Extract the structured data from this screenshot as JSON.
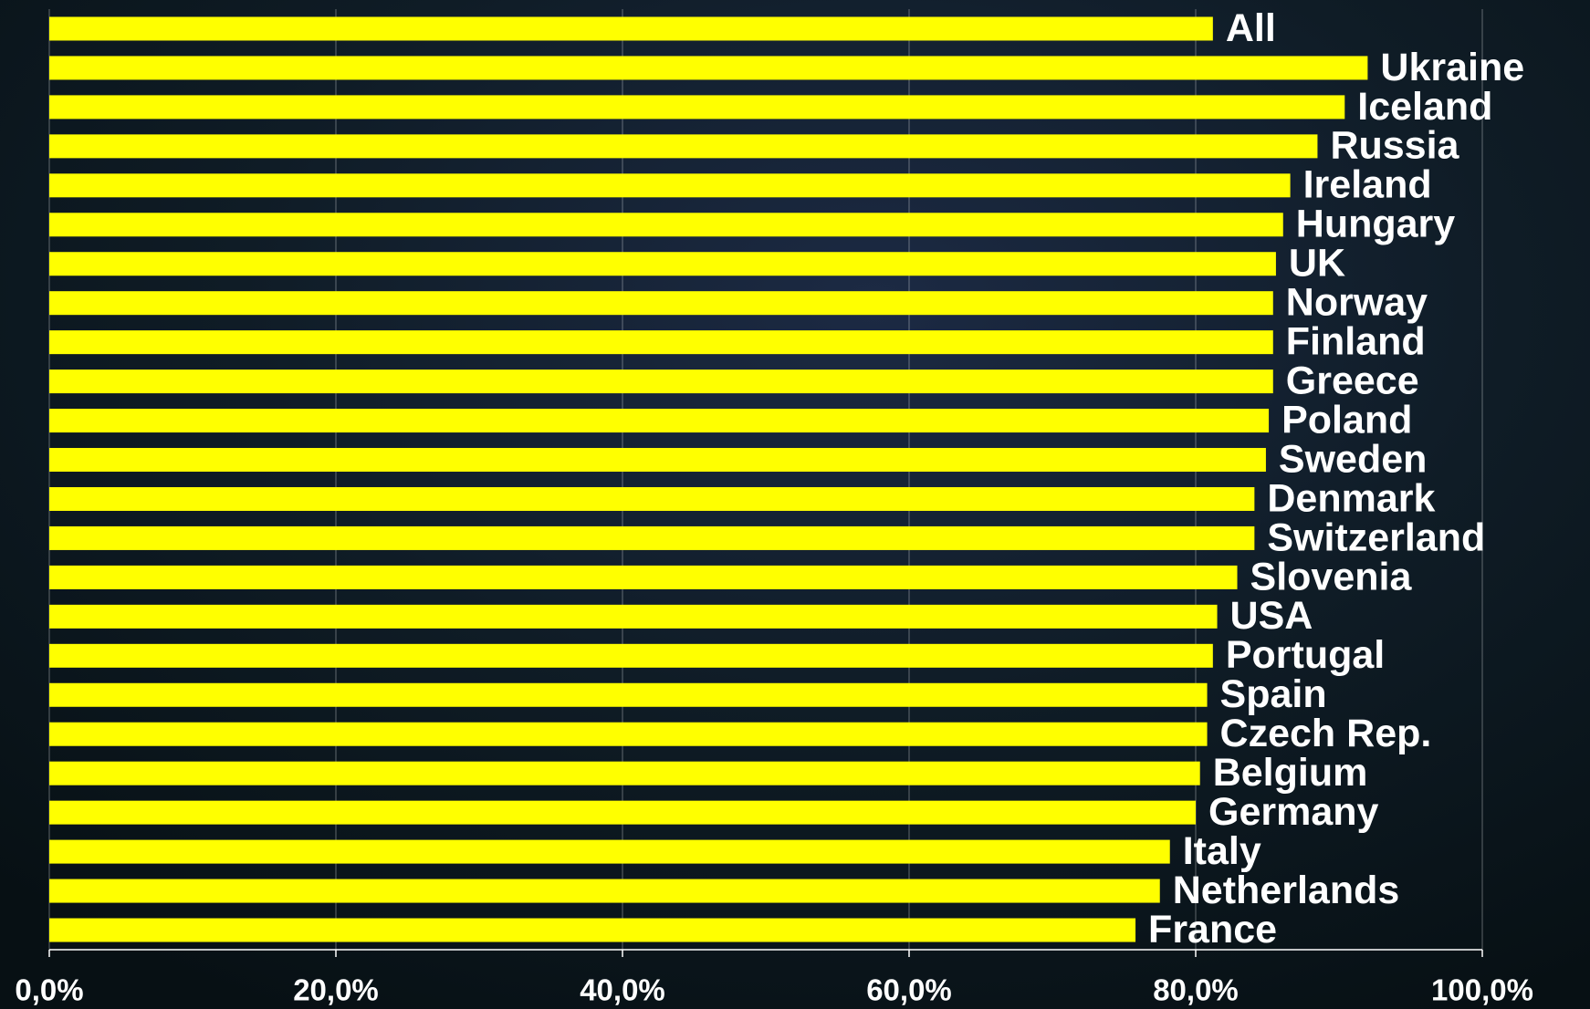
{
  "chart_data": {
    "type": "barh",
    "categories": [
      "All",
      "Ukraine",
      "Iceland",
      "Russia",
      "Ireland",
      "Hungary",
      "UK",
      "Norway",
      "Finland",
      "Greece",
      "Poland",
      "Sweden",
      "Denmark",
      "Switzerland",
      "Slovenia",
      "USA",
      "Portugal",
      "Spain",
      "Czech Rep.",
      "Belgium",
      "Germany",
      "Italy",
      "Netherlands",
      "France"
    ],
    "values": [
      81.2,
      92.0,
      90.4,
      88.5,
      86.6,
      86.1,
      85.6,
      85.4,
      85.4,
      85.4,
      85.1,
      84.9,
      84.1,
      84.1,
      82.9,
      81.5,
      81.2,
      80.8,
      80.8,
      80.3,
      80.0,
      78.2,
      77.5,
      75.8
    ],
    "color": "#ffff00",
    "xlim": [
      0,
      100
    ],
    "xticks": [
      {
        "value": 0,
        "label": "0,0%"
      },
      {
        "value": 20,
        "label": "20,0%"
      },
      {
        "value": 40,
        "label": "40,0%"
      },
      {
        "value": 60,
        "label": "60,0%"
      },
      {
        "value": 80,
        "label": "80,0%"
      },
      {
        "value": 100,
        "label": "100,0%"
      }
    ],
    "grid": true
  }
}
